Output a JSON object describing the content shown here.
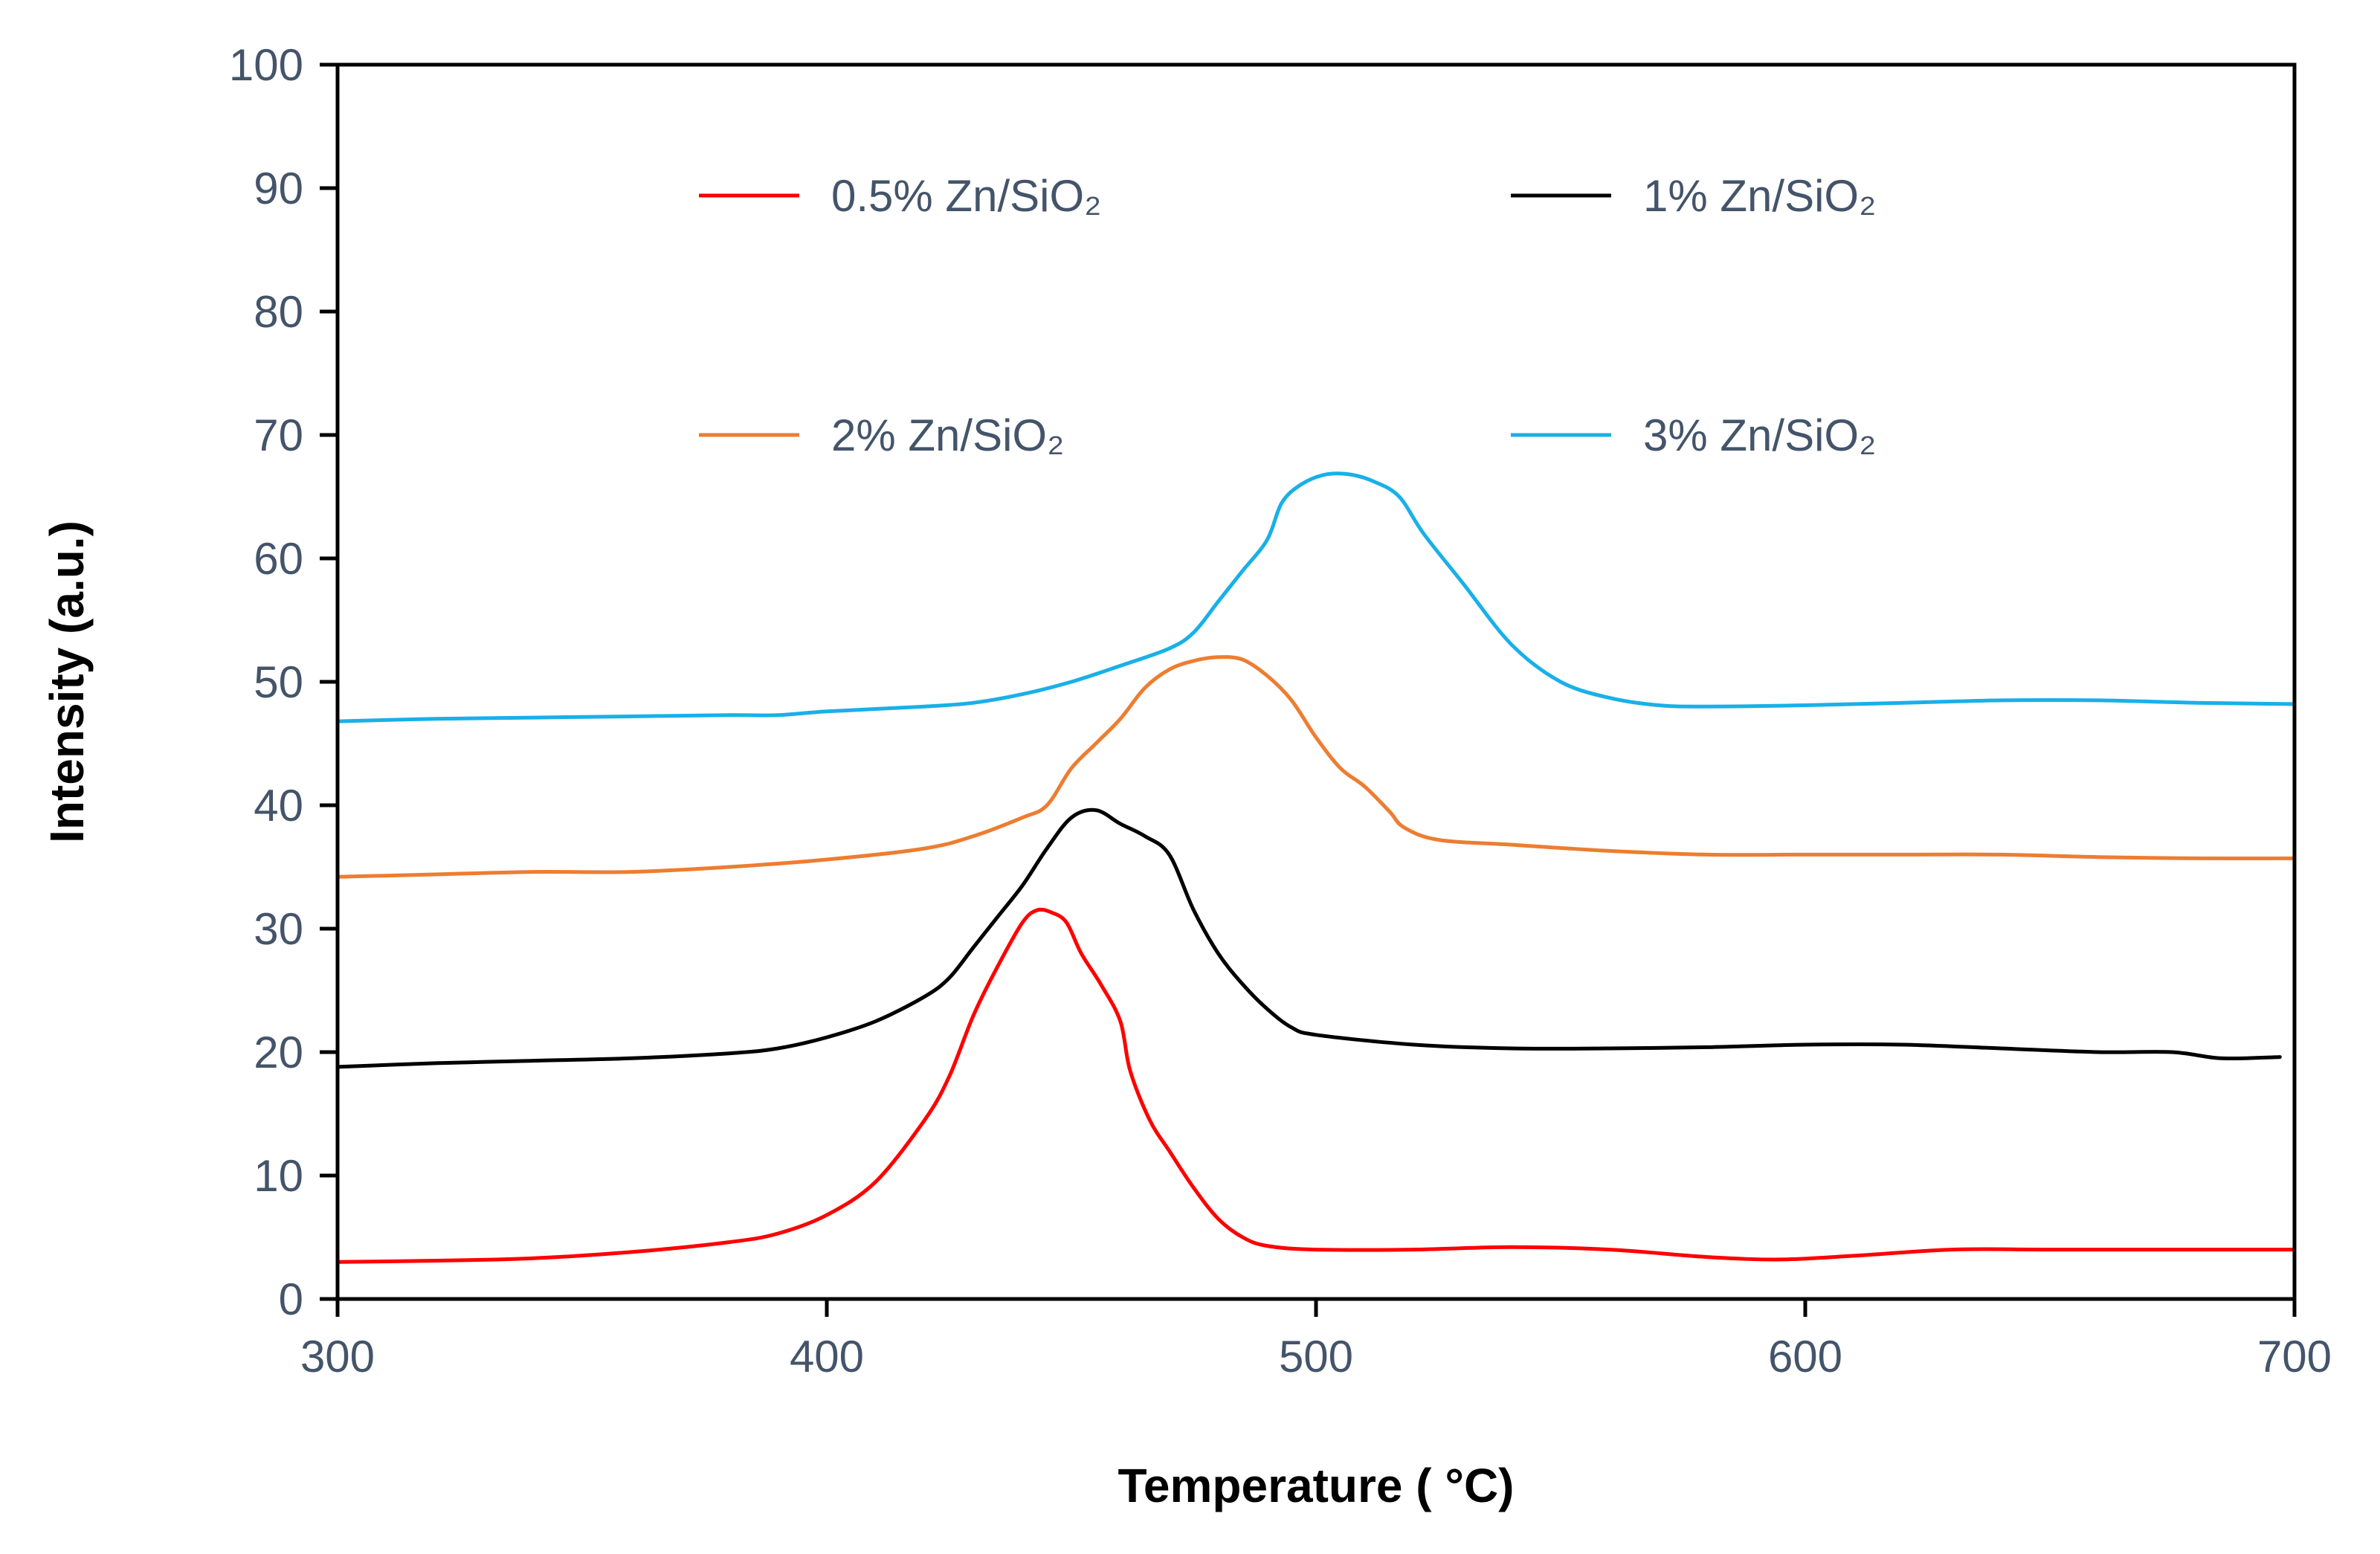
{
  "chart_data": {
    "type": "line",
    "title": "",
    "xlabel": "Temperature ( °C)",
    "ylabel": "Intensity (a.u.)",
    "xlim": [
      300,
      700
    ],
    "ylim": [
      0,
      100
    ],
    "xticks": [
      300,
      400,
      500,
      600,
      700
    ],
    "yticks": [
      0,
      10,
      20,
      30,
      40,
      50,
      60,
      70,
      80,
      90,
      100
    ],
    "grid": false,
    "legend_position": "top",
    "series": [
      {
        "name": "0.5% Zn/SiO₂",
        "color": "#ff0000",
        "points": [
          [
            300,
            3.0
          ],
          [
            320,
            3.1
          ],
          [
            340,
            3.3
          ],
          [
            360,
            3.8
          ],
          [
            380,
            4.6
          ],
          [
            390,
            5.3
          ],
          [
            400,
            6.8
          ],
          [
            410,
            9.5
          ],
          [
            420,
            14.5
          ],
          [
            425,
            18
          ],
          [
            430,
            23
          ],
          [
            435,
            27
          ],
          [
            440,
            30.5
          ],
          [
            443,
            31.5
          ],
          [
            446,
            31.3
          ],
          [
            449,
            30.5
          ],
          [
            452,
            28
          ],
          [
            456,
            25.5
          ],
          [
            460,
            22.5
          ],
          [
            462,
            18.5
          ],
          [
            466,
            14.5
          ],
          [
            470,
            12
          ],
          [
            475,
            9
          ],
          [
            480,
            6.5
          ],
          [
            485,
            5.0
          ],
          [
            490,
            4.3
          ],
          [
            500,
            4.0
          ],
          [
            520,
            4.0
          ],
          [
            540,
            4.2
          ],
          [
            560,
            4.0
          ],
          [
            580,
            3.4
          ],
          [
            595,
            3.2
          ],
          [
            610,
            3.5
          ],
          [
            630,
            4.0
          ],
          [
            650,
            4.0
          ],
          [
            680,
            4.0
          ],
          [
            700,
            4.0
          ]
        ]
      },
      {
        "name": "1% Zn/SiO₂",
        "color": "#000000",
        "points": [
          [
            300,
            18.8
          ],
          [
            320,
            19.1
          ],
          [
            340,
            19.3
          ],
          [
            360,
            19.5
          ],
          [
            380,
            19.9
          ],
          [
            390,
            20.3
          ],
          [
            400,
            21.2
          ],
          [
            410,
            22.5
          ],
          [
            420,
            24.5
          ],
          [
            425,
            26
          ],
          [
            430,
            28.5
          ],
          [
            435,
            31
          ],
          [
            440,
            33.5
          ],
          [
            445,
            36.5
          ],
          [
            450,
            39
          ],
          [
            455,
            39.6
          ],
          [
            460,
            38.5
          ],
          [
            465,
            37.5
          ],
          [
            470,
            36
          ],
          [
            475,
            31.5
          ],
          [
            480,
            28
          ],
          [
            485,
            25.5
          ],
          [
            490,
            23.5
          ],
          [
            495,
            22
          ],
          [
            500,
            21.4
          ],
          [
            520,
            20.6
          ],
          [
            540,
            20.3
          ],
          [
            560,
            20.3
          ],
          [
            580,
            20.4
          ],
          [
            600,
            20.6
          ],
          [
            620,
            20.6
          ],
          [
            640,
            20.3
          ],
          [
            660,
            20.0
          ],
          [
            675,
            20.0
          ],
          [
            685,
            19.5
          ],
          [
            697,
            19.6
          ]
        ]
      },
      {
        "name": "2% Zn/SiO₂",
        "color": "#ed7d31",
        "points": [
          [
            300,
            34.2
          ],
          [
            320,
            34.4
          ],
          [
            340,
            34.6
          ],
          [
            360,
            34.6
          ],
          [
            380,
            35.0
          ],
          [
            400,
            35.6
          ],
          [
            420,
            36.5
          ],
          [
            430,
            37.5
          ],
          [
            440,
            39
          ],
          [
            445,
            40
          ],
          [
            450,
            43
          ],
          [
            455,
            45
          ],
          [
            460,
            47
          ],
          [
            465,
            49.5
          ],
          [
            470,
            51
          ],
          [
            475,
            51.7
          ],
          [
            480,
            52.0
          ],
          [
            485,
            51.8
          ],
          [
            490,
            50.5
          ],
          [
            495,
            48.5
          ],
          [
            500,
            45.5
          ],
          [
            505,
            43
          ],
          [
            510,
            41.5
          ],
          [
            515,
            39.5
          ],
          [
            518,
            38.2
          ],
          [
            525,
            37.2
          ],
          [
            540,
            36.8
          ],
          [
            560,
            36.3
          ],
          [
            580,
            36.0
          ],
          [
            600,
            36.0
          ],
          [
            620,
            36.0
          ],
          [
            640,
            36.0
          ],
          [
            660,
            35.8
          ],
          [
            680,
            35.7
          ],
          [
            700,
            35.7
          ]
        ]
      },
      {
        "name": "3% Zn/SiO₂",
        "color": "#19b0e8",
        "points": [
          [
            300,
            46.8
          ],
          [
            320,
            47.0
          ],
          [
            340,
            47.1
          ],
          [
            360,
            47.2
          ],
          [
            380,
            47.3
          ],
          [
            390,
            47.3
          ],
          [
            400,
            47.6
          ],
          [
            420,
            48.0
          ],
          [
            430,
            48.3
          ],
          [
            440,
            49.0
          ],
          [
            450,
            50.0
          ],
          [
            460,
            51.3
          ],
          [
            470,
            52.7
          ],
          [
            475,
            54.0
          ],
          [
            480,
            56.5
          ],
          [
            485,
            59
          ],
          [
            490,
            61.5
          ],
          [
            493,
            64.5
          ],
          [
            497,
            66
          ],
          [
            502,
            66.8
          ],
          [
            507,
            66.8
          ],
          [
            512,
            66.2
          ],
          [
            517,
            65
          ],
          [
            522,
            62
          ],
          [
            530,
            58
          ],
          [
            540,
            53
          ],
          [
            550,
            50
          ],
          [
            560,
            48.7
          ],
          [
            570,
            48.1
          ],
          [
            580,
            48.0
          ],
          [
            600,
            48.1
          ],
          [
            620,
            48.3
          ],
          [
            640,
            48.5
          ],
          [
            660,
            48.5
          ],
          [
            680,
            48.3
          ],
          [
            700,
            48.2
          ]
        ]
      }
    ]
  }
}
